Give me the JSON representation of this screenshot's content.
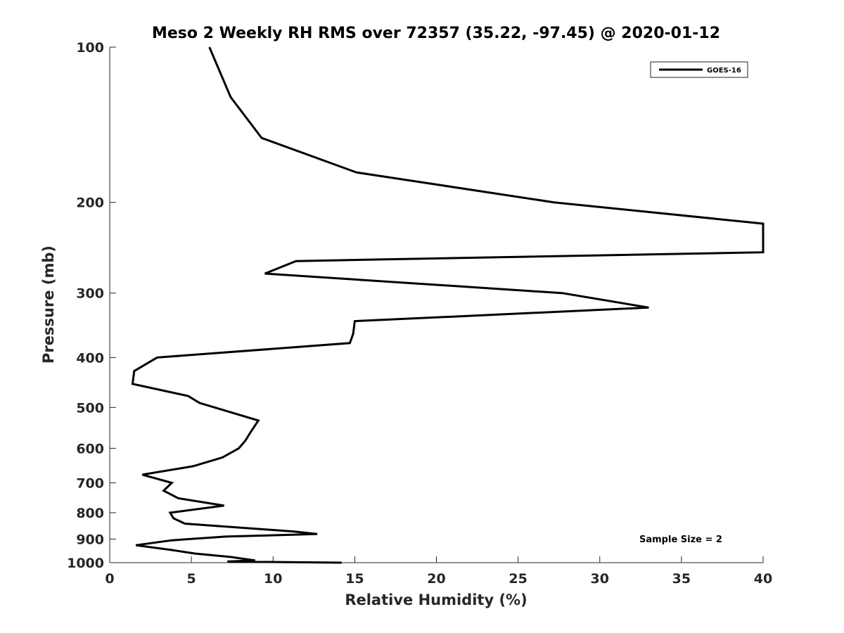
{
  "chart_data": {
    "type": "line",
    "title": "Meso 2 Weekly RH RMS over 72357 (35.22, -97.45) @ 2020-01-12",
    "xlabel": "Relative Humidity (%)",
    "ylabel": "Pressure (mb)",
    "xlim": [
      0,
      40
    ],
    "ylim": [
      100,
      1000
    ],
    "y_scale": "log",
    "y_reversed": true,
    "x_ticks": [
      0,
      5,
      10,
      15,
      20,
      25,
      30,
      35,
      40
    ],
    "y_ticks": [
      100,
      200,
      300,
      400,
      500,
      600,
      700,
      800,
      900,
      1000
    ],
    "grid": false,
    "legend": {
      "position": "top-right",
      "entries": [
        "GOES-16"
      ]
    },
    "annotation": "Sample Size = 2",
    "series": [
      {
        "name": "GOES-16",
        "color": "#000000",
        "points": [
          [
            6.1,
            100
          ],
          [
            7.4,
            125
          ],
          [
            9.3,
            150
          ],
          [
            15.1,
            175
          ],
          [
            27.2,
            200
          ],
          [
            40,
            220
          ],
          [
            40,
            250
          ],
          [
            11.4,
            260
          ],
          [
            9.5,
            275
          ],
          [
            27.7,
            300
          ],
          [
            33.0,
            320
          ],
          [
            15.0,
            340
          ],
          [
            14.9,
            360
          ],
          [
            14.7,
            375
          ],
          [
            2.9,
            400
          ],
          [
            1.5,
            425
          ],
          [
            1.4,
            450
          ],
          [
            4.8,
            475
          ],
          [
            5.5,
            490
          ],
          [
            9.1,
            530
          ],
          [
            8.6,
            560
          ],
          [
            8.3,
            580
          ],
          [
            7.9,
            600
          ],
          [
            6.9,
            625
          ],
          [
            5.1,
            650
          ],
          [
            2.0,
            675
          ],
          [
            3.8,
            700
          ],
          [
            3.3,
            725
          ],
          [
            4.2,
            750
          ],
          [
            7.0,
            775
          ],
          [
            3.7,
            800
          ],
          [
            3.9,
            820
          ],
          [
            4.6,
            840
          ],
          [
            11.3,
            870
          ],
          [
            12.7,
            880
          ],
          [
            7.1,
            890
          ],
          [
            3.8,
            905
          ],
          [
            1.6,
            925
          ],
          [
            3.8,
            945
          ],
          [
            5.2,
            960
          ],
          [
            7.4,
            975
          ],
          [
            8.9,
            990
          ],
          [
            7.2,
            995
          ],
          [
            14.2,
            1000
          ]
        ]
      }
    ]
  }
}
